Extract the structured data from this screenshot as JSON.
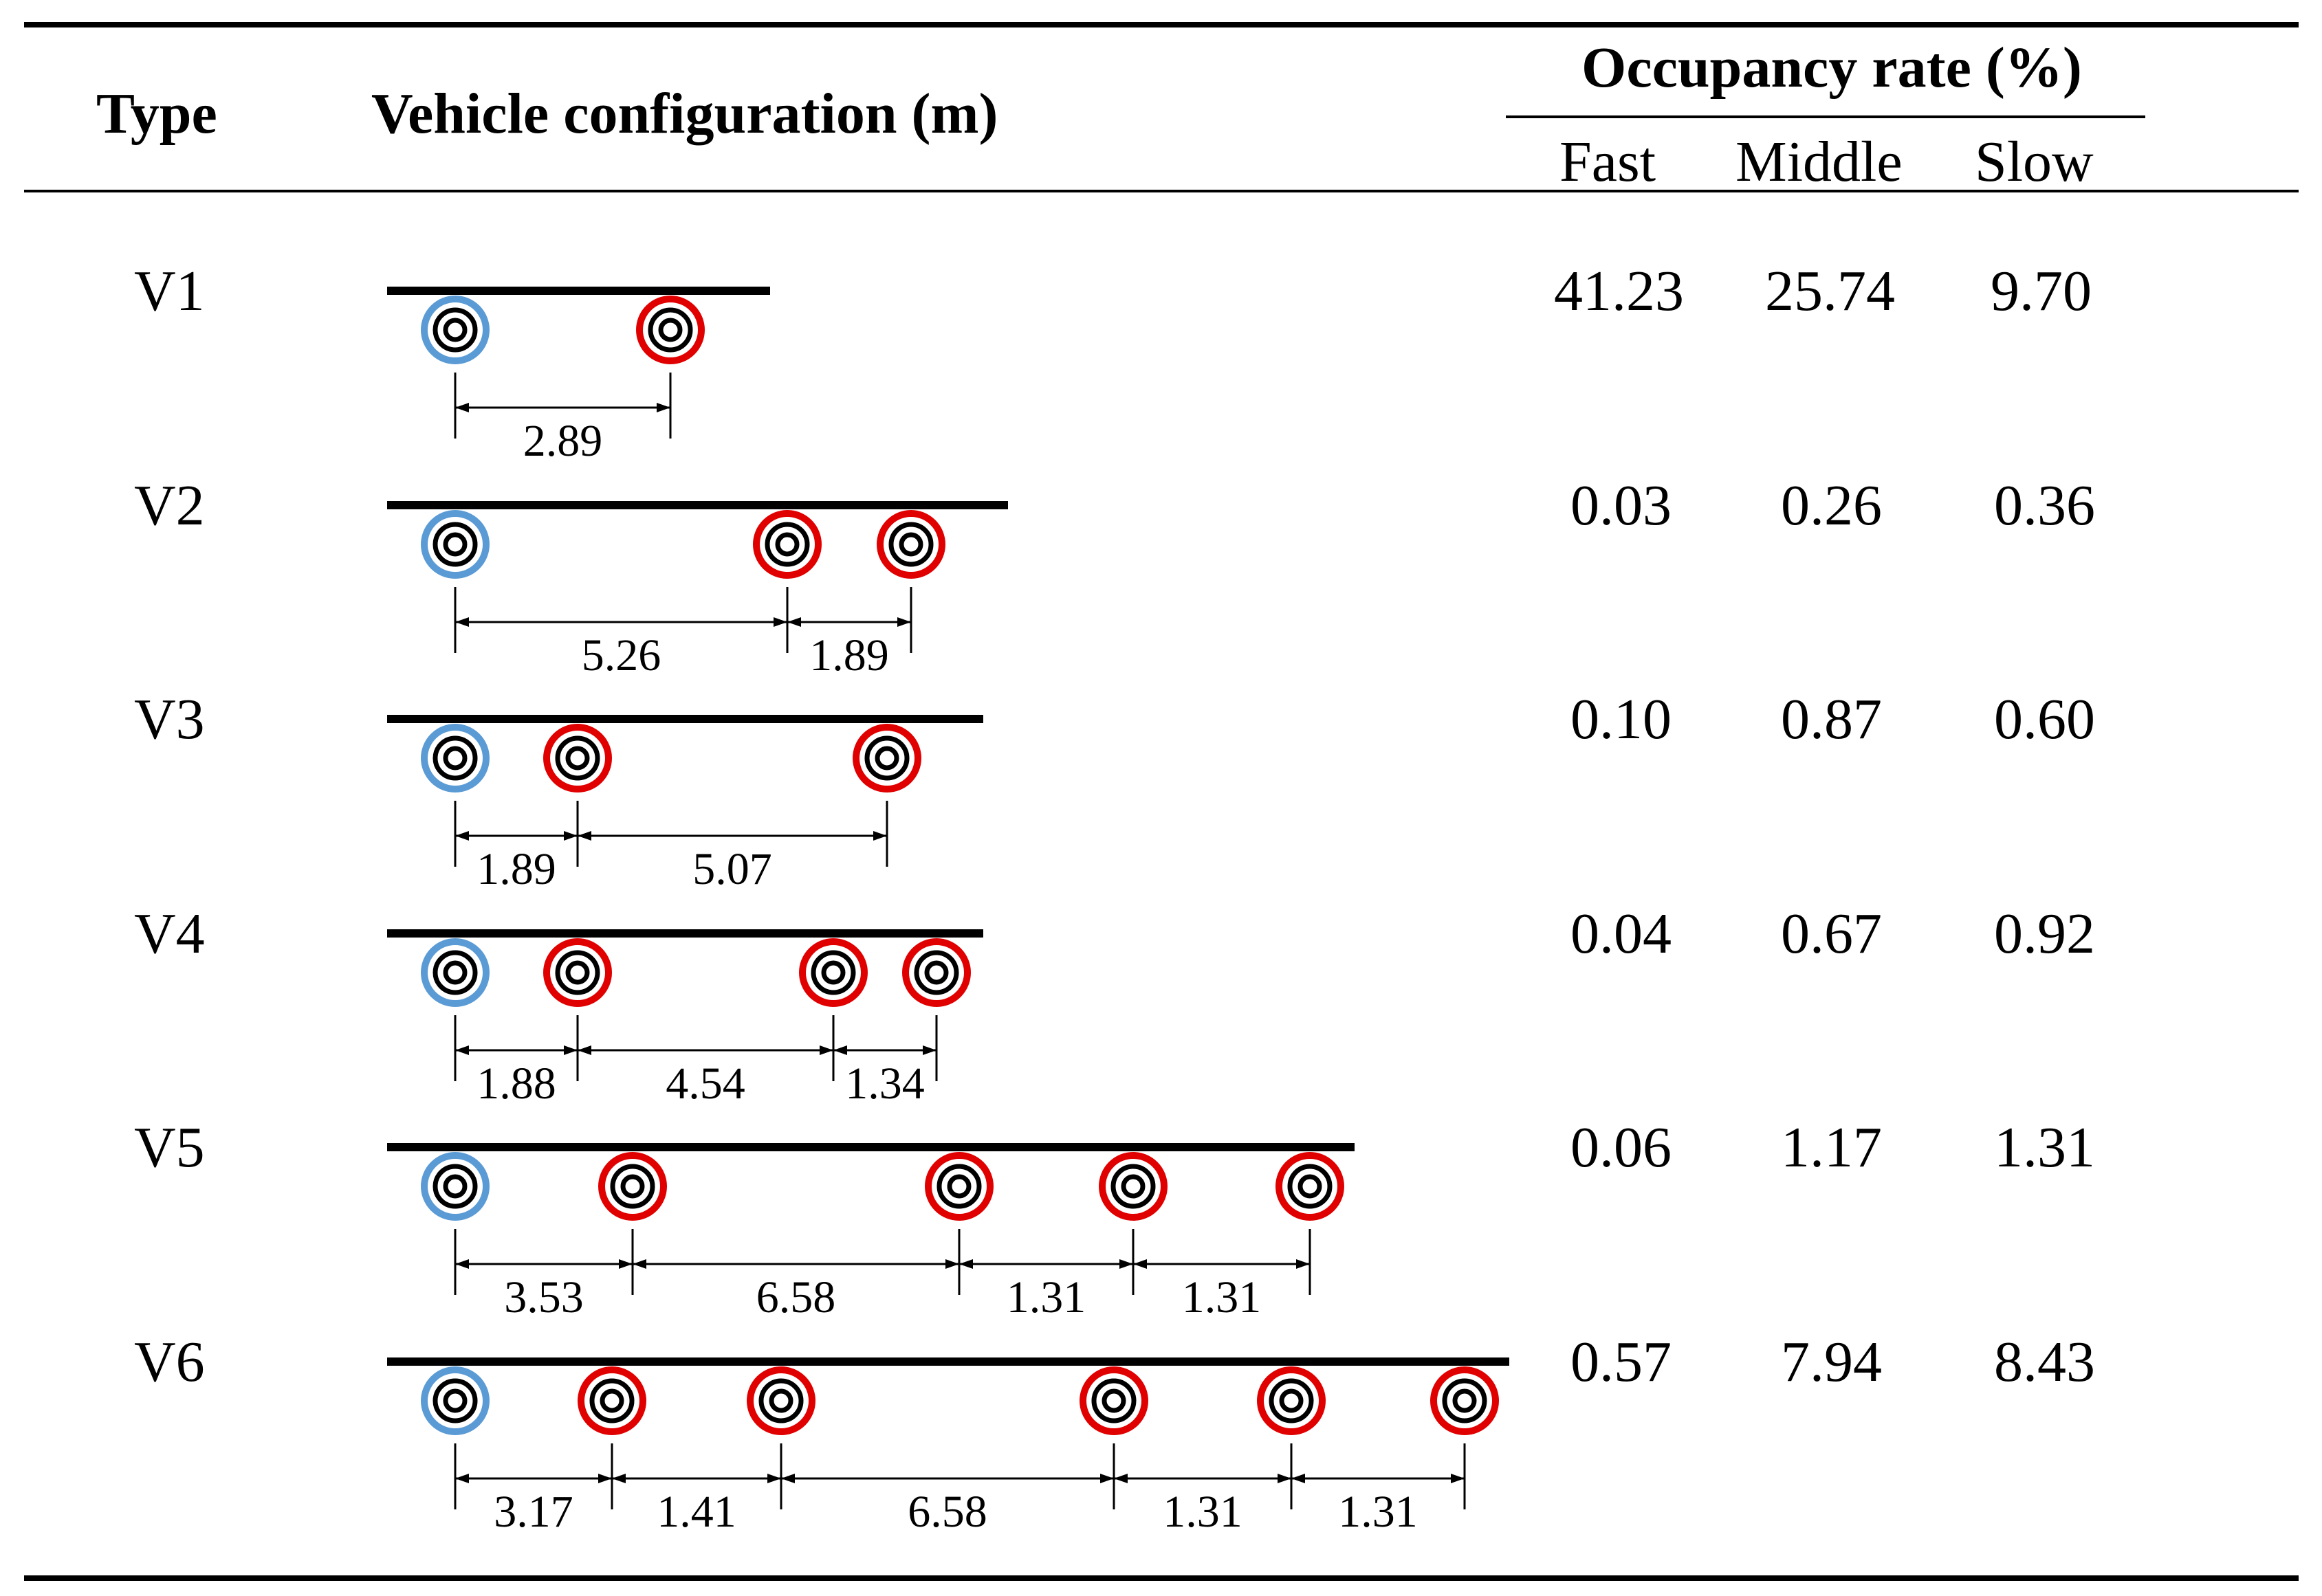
{
  "header": {
    "type": "Type",
    "config": "Vehicle configuration (m)",
    "occupancy": "Occupancy rate (%)",
    "fast": "Fast",
    "middle": "Middle",
    "slow": "Slow"
  },
  "colors": {
    "front_axle": "#5b9bd5",
    "rear_axle": "#e00000",
    "ink": "#000000"
  },
  "rows": [
    {
      "type": "V1",
      "spacings": [
        "2.89"
      ],
      "fast": "41.23",
      "middle": "25.74",
      "slow": "9.70"
    },
    {
      "type": "V2",
      "spacings": [
        "5.26",
        "1.89"
      ],
      "fast": "0.03",
      "middle": "0.26",
      "slow": "0.36"
    },
    {
      "type": "V3",
      "spacings": [
        "1.89",
        "5.07"
      ],
      "fast": "0.10",
      "middle": "0.87",
      "slow": "0.60"
    },
    {
      "type": "V4",
      "spacings": [
        "1.88",
        "4.54",
        "1.34"
      ],
      "fast": "0.04",
      "middle": "0.67",
      "slow": "0.92"
    },
    {
      "type": "V5",
      "spacings": [
        "3.53",
        "6.58",
        "1.31",
        "1.31"
      ],
      "fast": "0.06",
      "middle": "1.17",
      "slow": "1.31"
    },
    {
      "type": "V6",
      "spacings": [
        "3.17",
        "1.41",
        "6.58",
        "1.31",
        "1.31"
      ],
      "fast": "0.57",
      "middle": "7.94",
      "slow": "8.43"
    }
  ]
}
